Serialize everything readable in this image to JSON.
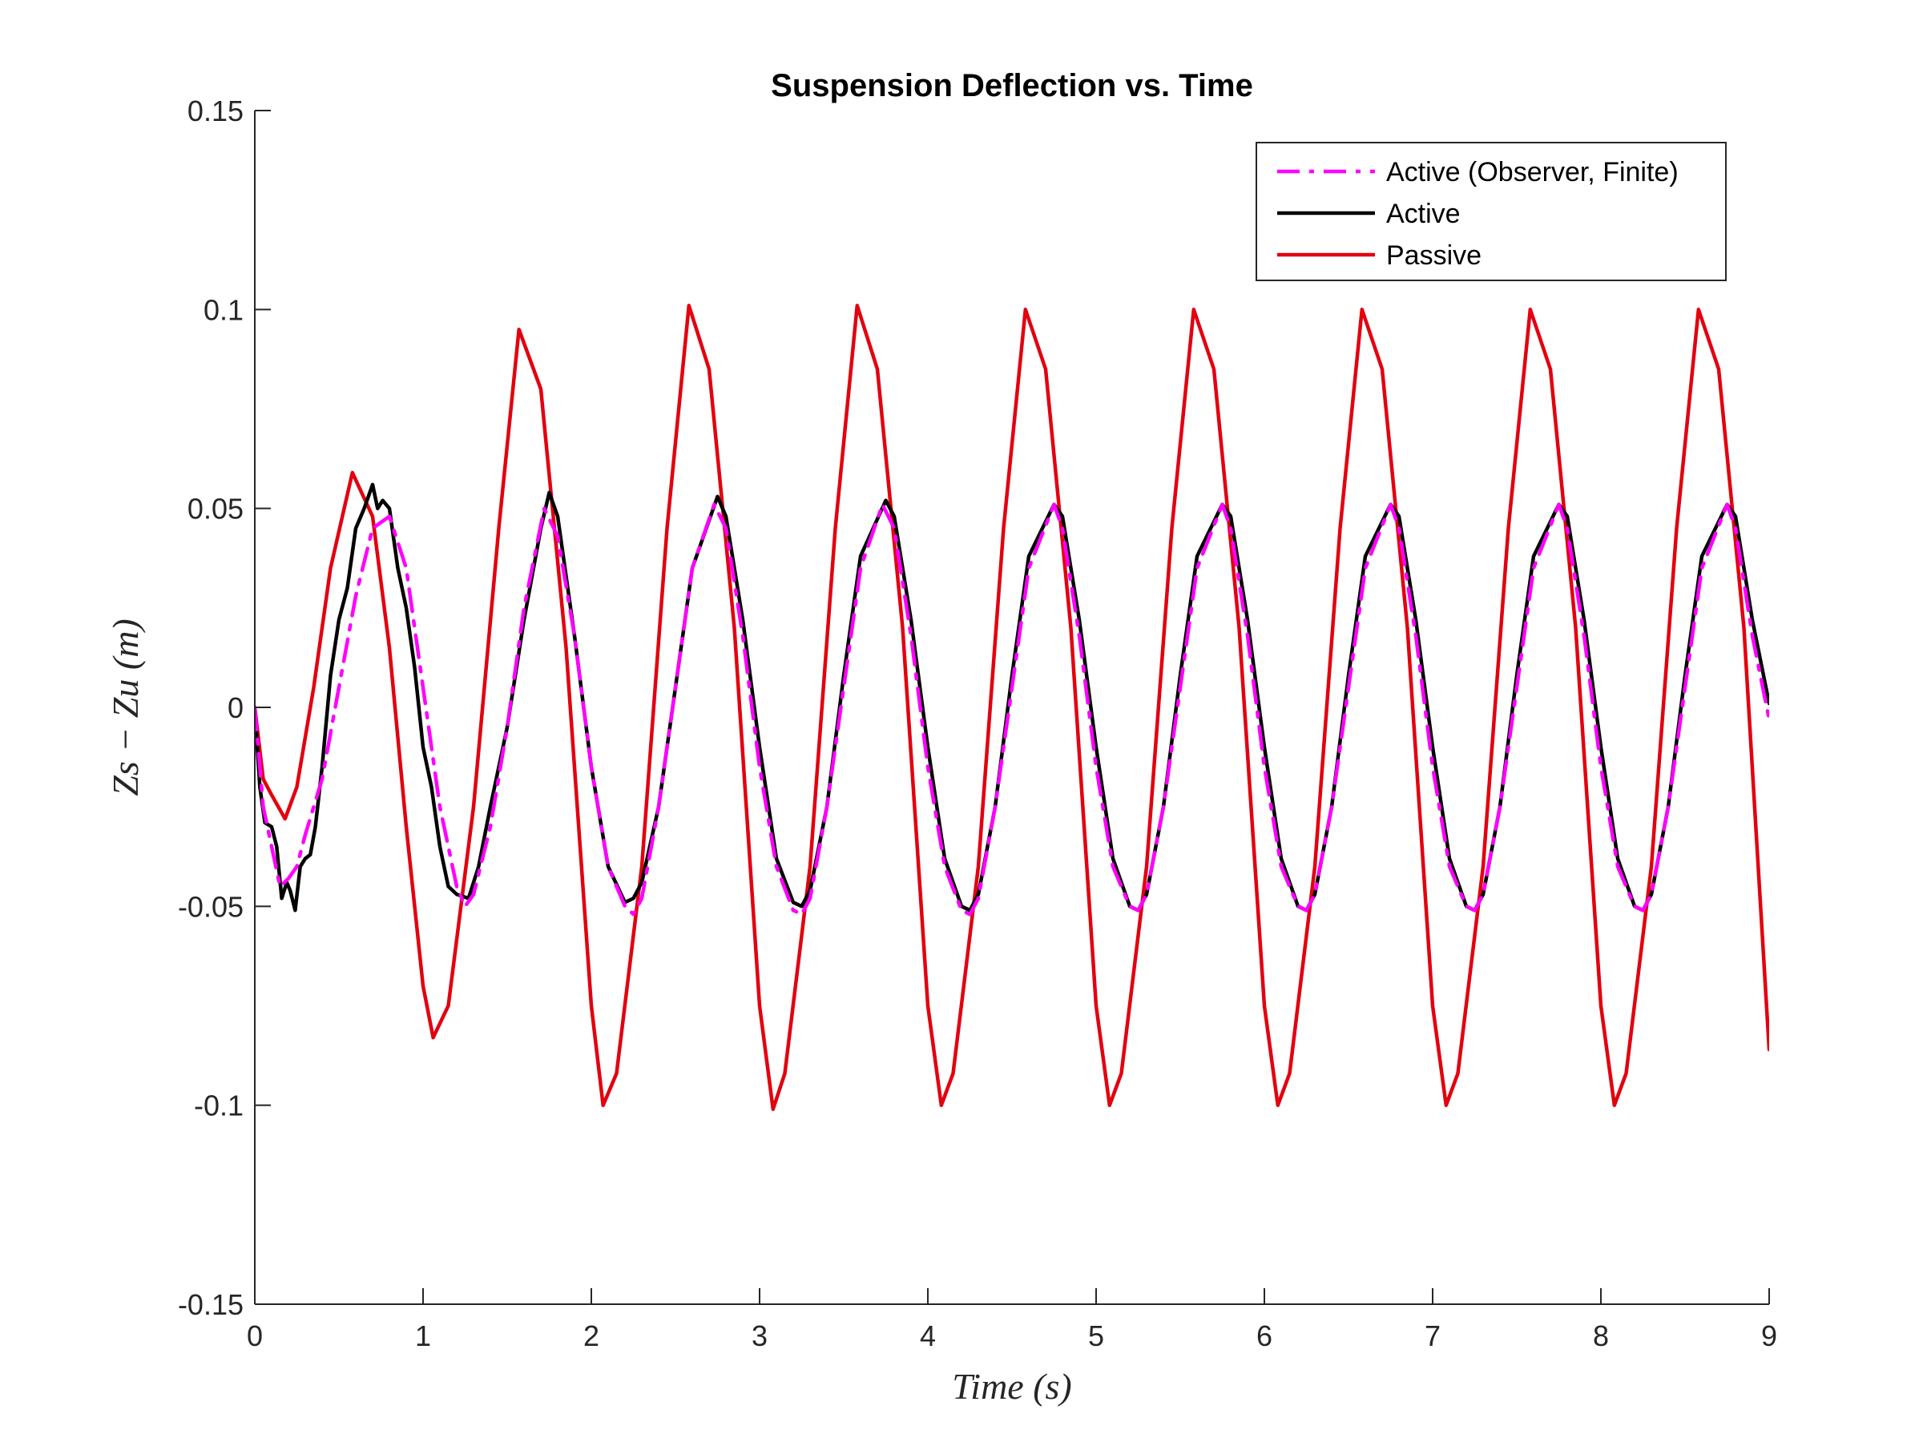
{
  "chart_data": {
    "type": "line",
    "title": "Suspension Deflection vs. Time",
    "xlabel": "Time (s)",
    "ylabel": "Zs − Zu (m)",
    "xlim": [
      0,
      9
    ],
    "ylim": [
      -0.15,
      0.15
    ],
    "x_ticks": [
      "0",
      "1",
      "2",
      "3",
      "4",
      "5",
      "6",
      "7",
      "8",
      "9"
    ],
    "y_ticks": [
      "-0.15",
      "-0.1",
      "-0.05",
      "0",
      "0.05",
      "0.1",
      "0.15"
    ],
    "grid": false,
    "legend_position": "top-right",
    "series": [
      {
        "name": "Active (Observer, Finite)",
        "color": "#ff00ff",
        "style": "dash-dot",
        "x": [
          0,
          0.05,
          0.1,
          0.15,
          0.2,
          0.25,
          0.3,
          0.4,
          0.5,
          0.6,
          0.7,
          0.8,
          0.9,
          1.0,
          1.1,
          1.2,
          1.25,
          1.3,
          1.4,
          1.5,
          1.6,
          1.72,
          1.8,
          1.9,
          2.0,
          2.1,
          2.2,
          2.25,
          2.3,
          2.4,
          2.5,
          2.6,
          2.73,
          2.8,
          2.9,
          3.0,
          3.1,
          3.2,
          3.25,
          3.3,
          3.4,
          3.5,
          3.6,
          3.73,
          3.8,
          3.9,
          4.0,
          4.1,
          4.2,
          4.25,
          4.3,
          4.4,
          4.5,
          4.6,
          4.75,
          4.8,
          4.9,
          5.0,
          5.1,
          5.2,
          5.25,
          5.3,
          5.4,
          5.5,
          5.6,
          5.75,
          5.8,
          5.9,
          6.0,
          6.1,
          6.2,
          6.25,
          6.3,
          6.4,
          6.5,
          6.6,
          6.75,
          6.8,
          6.9,
          7.0,
          7.1,
          7.2,
          7.25,
          7.3,
          7.4,
          7.5,
          7.6,
          7.75,
          7.8,
          7.9,
          8.0,
          8.1,
          8.2,
          8.25,
          8.3,
          8.4,
          8.5,
          8.6,
          8.75,
          8.8,
          8.9,
          9.0
        ],
        "y": [
          0,
          -0.025,
          -0.035,
          -0.045,
          -0.043,
          -0.04,
          -0.032,
          -0.018,
          0.005,
          0.028,
          0.045,
          0.048,
          0.035,
          0.005,
          -0.025,
          -0.045,
          -0.05,
          -0.047,
          -0.03,
          -0.005,
          0.025,
          0.05,
          0.043,
          0.018,
          -0.015,
          -0.04,
          -0.05,
          -0.052,
          -0.048,
          -0.025,
          0.005,
          0.035,
          0.051,
          0.045,
          0.018,
          -0.015,
          -0.04,
          -0.051,
          -0.052,
          -0.048,
          -0.025,
          0.005,
          0.035,
          0.051,
          0.045,
          0.018,
          -0.015,
          -0.04,
          -0.051,
          -0.052,
          -0.048,
          -0.025,
          0.005,
          0.035,
          0.051,
          0.045,
          0.018,
          -0.015,
          -0.04,
          -0.05,
          -0.051,
          -0.047,
          -0.025,
          0.005,
          0.035,
          0.051,
          0.045,
          0.018,
          -0.015,
          -0.04,
          -0.05,
          -0.051,
          -0.047,
          -0.025,
          0.005,
          0.035,
          0.051,
          0.045,
          0.018,
          -0.015,
          -0.04,
          -0.05,
          -0.051,
          -0.047,
          -0.025,
          0.005,
          0.035,
          0.051,
          0.045,
          0.018,
          -0.015,
          -0.04,
          -0.05,
          -0.051,
          -0.047,
          -0.025,
          0.005,
          0.035,
          0.051,
          0.045,
          0.018,
          -0.003
        ]
      },
      {
        "name": "Active",
        "color": "#000000",
        "style": "solid",
        "x": [
          0,
          0.03,
          0.06,
          0.1,
          0.13,
          0.16,
          0.19,
          0.21,
          0.24,
          0.27,
          0.3,
          0.33,
          0.36,
          0.4,
          0.45,
          0.5,
          0.55,
          0.6,
          0.65,
          0.7,
          0.73,
          0.76,
          0.8,
          0.85,
          0.9,
          0.95,
          1.0,
          1.05,
          1.1,
          1.15,
          1.2,
          1.27,
          1.33,
          1.4,
          1.5,
          1.6,
          1.7,
          1.75,
          1.8,
          1.9,
          2.0,
          2.1,
          2.2,
          2.25,
          2.3,
          2.4,
          2.5,
          2.6,
          2.75,
          2.8,
          2.9,
          3.0,
          3.1,
          3.2,
          3.25,
          3.3,
          3.4,
          3.5,
          3.6,
          3.75,
          3.8,
          3.9,
          4.0,
          4.1,
          4.2,
          4.25,
          4.3,
          4.4,
          4.5,
          4.6,
          4.75,
          4.8,
          4.9,
          5.0,
          5.1,
          5.2,
          5.25,
          5.3,
          5.4,
          5.5,
          5.6,
          5.75,
          5.8,
          5.9,
          6.0,
          6.1,
          6.2,
          6.25,
          6.3,
          6.4,
          6.5,
          6.6,
          6.75,
          6.8,
          6.9,
          7.0,
          7.1,
          7.2,
          7.25,
          7.3,
          7.4,
          7.5,
          7.6,
          7.75,
          7.8,
          7.9,
          8.0,
          8.1,
          8.2,
          8.25,
          8.3,
          8.4,
          8.5,
          8.6,
          8.75,
          8.8,
          8.9,
          9.0
        ],
        "y": [
          0,
          -0.02,
          -0.029,
          -0.03,
          -0.035,
          -0.048,
          -0.044,
          -0.046,
          -0.051,
          -0.04,
          -0.038,
          -0.037,
          -0.03,
          -0.015,
          0.008,
          0.022,
          0.03,
          0.045,
          0.05,
          0.056,
          0.05,
          0.052,
          0.05,
          0.035,
          0.025,
          0.01,
          -0.01,
          -0.02,
          -0.035,
          -0.045,
          -0.047,
          -0.048,
          -0.04,
          -0.025,
          -0.005,
          0.022,
          0.045,
          0.054,
          0.048,
          0.018,
          -0.015,
          -0.04,
          -0.049,
          -0.048,
          -0.044,
          -0.025,
          0.005,
          0.035,
          0.053,
          0.048,
          0.022,
          -0.01,
          -0.038,
          -0.049,
          -0.05,
          -0.046,
          -0.025,
          0.008,
          0.038,
          0.052,
          0.048,
          0.022,
          -0.01,
          -0.038,
          -0.05,
          -0.051,
          -0.047,
          -0.025,
          0.008,
          0.038,
          0.051,
          0.048,
          0.022,
          -0.01,
          -0.038,
          -0.05,
          -0.051,
          -0.047,
          -0.025,
          0.008,
          0.038,
          0.051,
          0.048,
          0.022,
          -0.01,
          -0.038,
          -0.05,
          -0.051,
          -0.047,
          -0.025,
          0.008,
          0.038,
          0.051,
          0.048,
          0.022,
          -0.01,
          -0.038,
          -0.05,
          -0.051,
          -0.047,
          -0.025,
          0.008,
          0.038,
          0.051,
          0.048,
          0.022,
          -0.01,
          -0.038,
          -0.05,
          -0.051,
          -0.047,
          -0.025,
          0.008,
          0.038,
          0.051,
          0.048,
          0.022,
          0.001
        ]
      },
      {
        "name": "Passive",
        "color": "#e3000f",
        "style": "solid",
        "x": [
          0,
          0.05,
          0.1,
          0.18,
          0.25,
          0.35,
          0.45,
          0.58,
          0.7,
          0.8,
          0.9,
          1.0,
          1.06,
          1.15,
          1.3,
          1.45,
          1.57,
          1.7,
          1.85,
          2.0,
          2.07,
          2.15,
          2.3,
          2.45,
          2.58,
          2.7,
          2.85,
          3.0,
          3.08,
          3.15,
          3.3,
          3.45,
          3.58,
          3.7,
          3.85,
          4.0,
          4.08,
          4.15,
          4.3,
          4.45,
          4.58,
          4.7,
          4.85,
          5.0,
          5.08,
          5.15,
          5.3,
          5.45,
          5.58,
          5.7,
          5.85,
          6.0,
          6.08,
          6.15,
          6.3,
          6.45,
          6.58,
          6.7,
          6.85,
          7.0,
          7.08,
          7.15,
          7.3,
          7.45,
          7.58,
          7.7,
          7.85,
          8.0,
          8.08,
          8.15,
          8.3,
          8.45,
          8.58,
          8.7,
          8.85,
          9.0
        ],
        "y": [
          0,
          -0.018,
          -0.022,
          -0.028,
          -0.02,
          0.005,
          0.035,
          0.059,
          0.048,
          0.015,
          -0.03,
          -0.07,
          -0.083,
          -0.075,
          -0.025,
          0.045,
          0.095,
          0.08,
          0.015,
          -0.075,
          -0.1,
          -0.092,
          -0.04,
          0.045,
          0.101,
          0.085,
          0.02,
          -0.075,
          -0.101,
          -0.092,
          -0.04,
          0.045,
          0.101,
          0.085,
          0.02,
          -0.075,
          -0.1,
          -0.092,
          -0.04,
          0.045,
          0.1,
          0.085,
          0.02,
          -0.075,
          -0.1,
          -0.092,
          -0.04,
          0.045,
          0.1,
          0.085,
          0.02,
          -0.075,
          -0.1,
          -0.092,
          -0.04,
          0.045,
          0.1,
          0.085,
          0.02,
          -0.075,
          -0.1,
          -0.092,
          -0.04,
          0.045,
          0.1,
          0.085,
          0.02,
          -0.075,
          -0.1,
          -0.092,
          -0.04,
          0.045,
          0.1,
          0.085,
          0.02,
          -0.086
        ]
      }
    ]
  }
}
